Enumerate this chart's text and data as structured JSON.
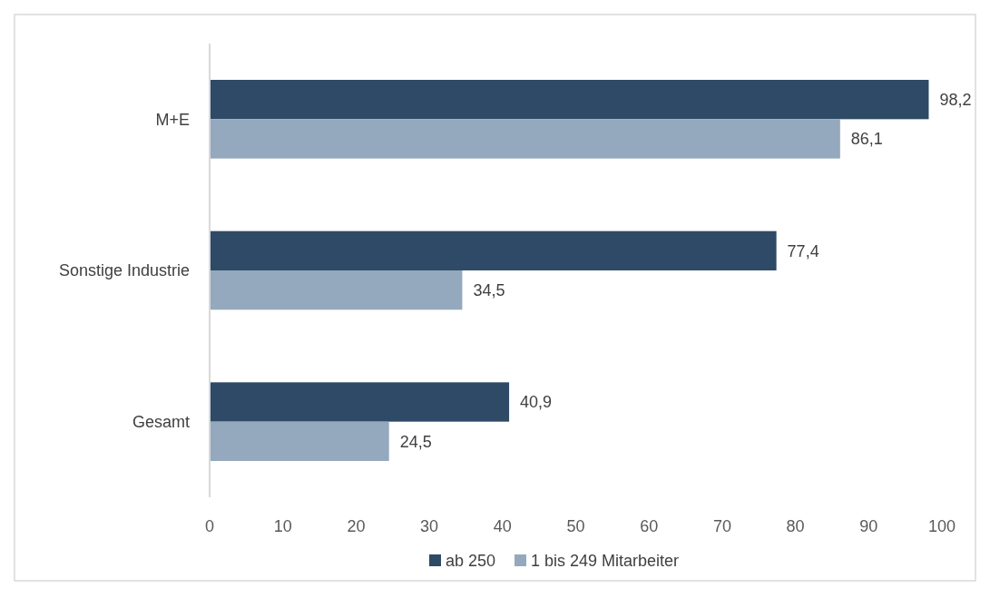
{
  "chart_data": {
    "type": "bar",
    "orientation": "horizontal",
    "categories": [
      "M+E",
      "Sonstige Industrie",
      "Gesamt"
    ],
    "series": [
      {
        "name": "ab 250",
        "color": "#2e4a66",
        "values": [
          98.2,
          77.4,
          40.9
        ],
        "value_labels": [
          "98,2",
          "77,4",
          "40,9"
        ]
      },
      {
        "name": "1 bis 249 Mitarbeiter",
        "color": "#94a9bd",
        "values": [
          86.1,
          34.5,
          24.5
        ],
        "value_labels": [
          "86,1",
          "34,5",
          "24,5"
        ]
      }
    ],
    "xlim": [
      0,
      100
    ],
    "xticks": [
      0,
      10,
      20,
      30,
      40,
      50,
      60,
      70,
      80,
      90,
      100
    ],
    "legend": "bottom",
    "grid": false
  }
}
